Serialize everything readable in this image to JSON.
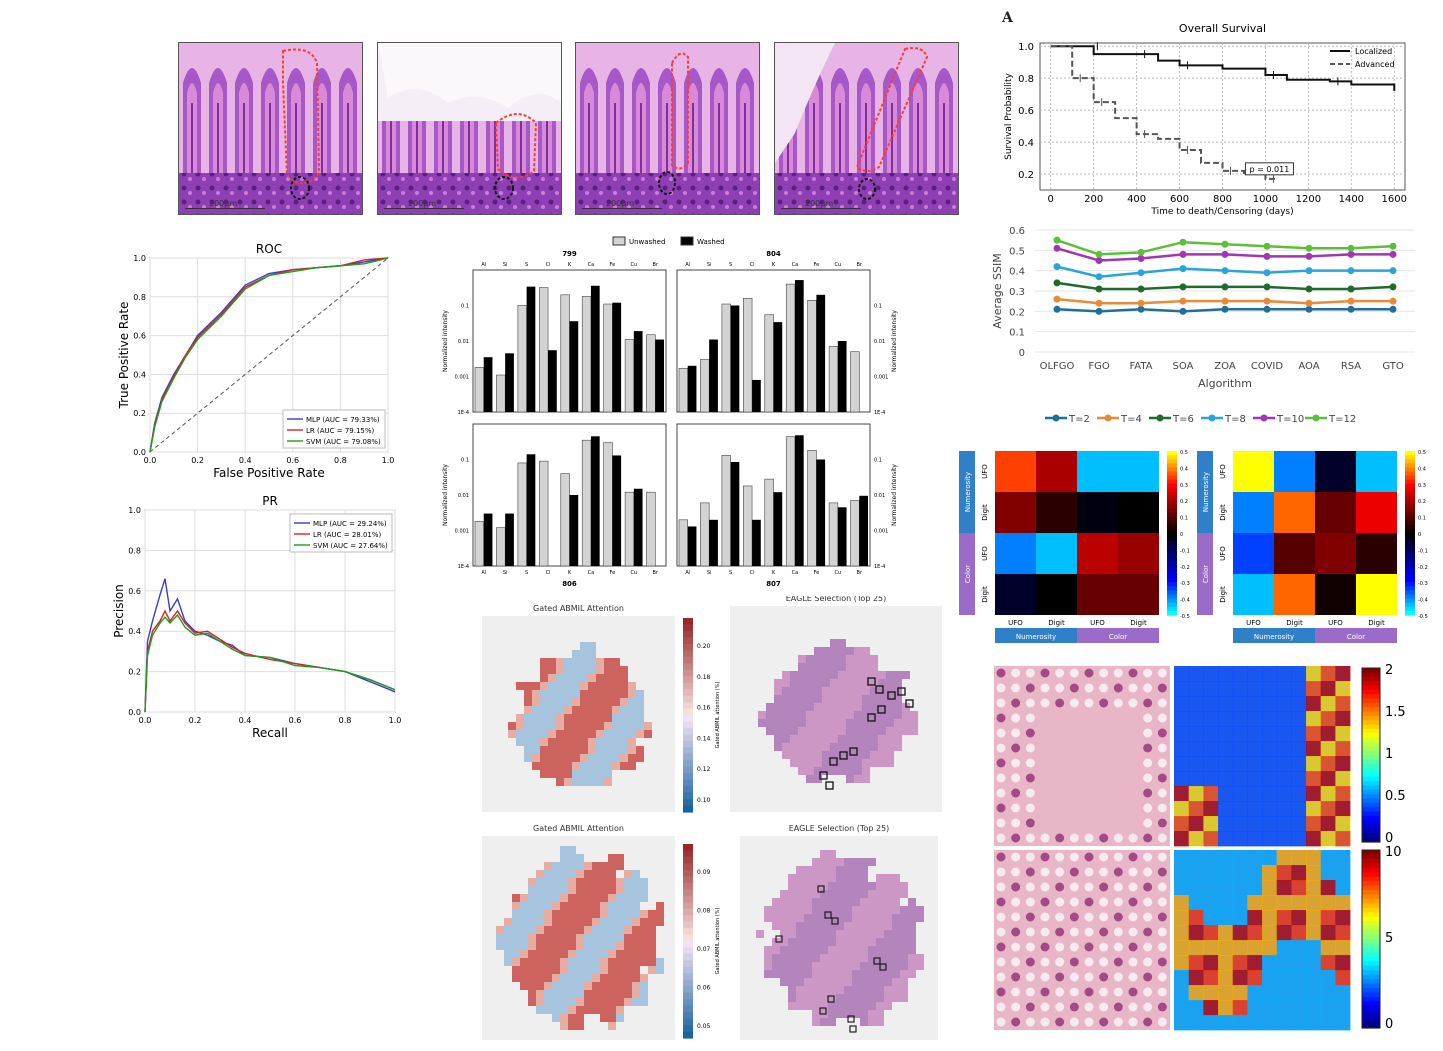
{
  "panel_label_A": "A",
  "histology_panels": [
    {
      "scale": "200μm"
    },
    {
      "scale": "200μm"
    },
    {
      "scale": "200μm"
    },
    {
      "scale": "200μm"
    }
  ],
  "colors": {
    "mlp": "#3a3ad6",
    "lr": "#d42424",
    "svm": "#1e9e1e",
    "he_purple": "#b06ad0",
    "he_pink": "#e3a2dc",
    "ssim": [
      "#1f6f9c",
      "#e98a36",
      "#1e6b2c",
      "#2aa5d9",
      "#a035b5",
      "#5cbf3a"
    ]
  },
  "chart_data": [
    {
      "id": "survival",
      "type": "line",
      "title": "Overall Survival",
      "xlabel": "Time to death/Censoring (days)",
      "ylabel": "Survival Probability",
      "xlim": [
        -50,
        1650
      ],
      "ylim": [
        0.1,
        1.02
      ],
      "xticks": [
        0,
        200,
        400,
        600,
        800,
        1000,
        1200,
        1400,
        1600
      ],
      "yticks": [
        0.2,
        0.4,
        0.6,
        0.8,
        1.0
      ],
      "grid": true,
      "legend_position": "top-right",
      "annotation": "p = 0.011",
      "series": [
        {
          "name": "Localized",
          "style": "solid",
          "x": [
            0,
            180,
            200,
            400,
            500,
            600,
            800,
            1000,
            1100,
            1300,
            1400,
            1600
          ],
          "y": [
            1.0,
            1.0,
            0.95,
            0.95,
            0.91,
            0.88,
            0.86,
            0.82,
            0.79,
            0.78,
            0.76,
            0.72
          ]
        },
        {
          "name": "Advanced",
          "style": "dashed",
          "x": [
            0,
            100,
            180,
            200,
            300,
            400,
            500,
            600,
            700,
            800,
            900,
            1000,
            1050
          ],
          "y": [
            1.0,
            0.8,
            0.8,
            0.65,
            0.55,
            0.45,
            0.42,
            0.35,
            0.27,
            0.22,
            0.2,
            0.17,
            0.17
          ]
        }
      ]
    },
    {
      "id": "ssim",
      "type": "line",
      "xlabel": "Algorithm",
      "ylabel": "Average SSIM",
      "categories": [
        "OLFGO",
        "FGO",
        "FATA",
        "SOA",
        "ZOA",
        "COVID",
        "AOA",
        "RSA",
        "GTO"
      ],
      "ylim": [
        0,
        0.6
      ],
      "yticks": [
        0,
        0.1,
        0.2,
        0.3,
        0.4,
        0.5,
        0.6
      ],
      "grid": true,
      "legend_position": "bottom",
      "series": [
        {
          "name": "T=2",
          "values": [
            0.21,
            0.2,
            0.21,
            0.2,
            0.21,
            0.21,
            0.21,
            0.21,
            0.21
          ]
        },
        {
          "name": "T=4",
          "values": [
            0.26,
            0.24,
            0.24,
            0.25,
            0.25,
            0.25,
            0.24,
            0.25,
            0.25
          ]
        },
        {
          "name": "T=6",
          "values": [
            0.34,
            0.31,
            0.31,
            0.32,
            0.32,
            0.32,
            0.31,
            0.31,
            0.32
          ]
        },
        {
          "name": "T=8",
          "values": [
            0.42,
            0.37,
            0.39,
            0.41,
            0.4,
            0.39,
            0.4,
            0.4,
            0.4
          ]
        },
        {
          "name": "T=10",
          "values": [
            0.51,
            0.45,
            0.46,
            0.48,
            0.48,
            0.47,
            0.47,
            0.48,
            0.48
          ]
        },
        {
          "name": "T=12",
          "values": [
            0.55,
            0.48,
            0.49,
            0.54,
            0.53,
            0.52,
            0.51,
            0.51,
            0.52
          ]
        }
      ]
    },
    {
      "id": "roc",
      "type": "line",
      "title": "ROC",
      "xlabel": "False Positive Rate",
      "ylabel": "True Positive Rate",
      "xlim": [
        0,
        1
      ],
      "ylim": [
        0,
        1
      ],
      "ticks": [
        "0.0",
        "0.2",
        "0.4",
        "0.6",
        "0.8",
        "1.0"
      ],
      "grid": true,
      "legend_position": "bottom-right",
      "series": [
        {
          "name": "MLP (AUC = 79.33%)",
          "x": [
            0,
            0.02,
            0.05,
            0.1,
            0.15,
            0.2,
            0.3,
            0.4,
            0.5,
            0.6,
            0.7,
            0.8,
            0.9,
            1.0
          ],
          "y": [
            0,
            0.15,
            0.28,
            0.4,
            0.5,
            0.6,
            0.72,
            0.86,
            0.92,
            0.94,
            0.95,
            0.96,
            0.98,
            1.0
          ]
        },
        {
          "name": "LR (AUC = 79.15%)",
          "x": [
            0,
            0.02,
            0.05,
            0.1,
            0.15,
            0.2,
            0.3,
            0.4,
            0.5,
            0.6,
            0.7,
            0.8,
            0.9,
            1.0
          ],
          "y": [
            0,
            0.14,
            0.27,
            0.39,
            0.5,
            0.59,
            0.71,
            0.85,
            0.91,
            0.94,
            0.95,
            0.96,
            0.99,
            1.0
          ]
        },
        {
          "name": "SVM (AUC = 79.08%)",
          "x": [
            0,
            0.02,
            0.05,
            0.1,
            0.15,
            0.2,
            0.3,
            0.4,
            0.5,
            0.6,
            0.7,
            0.8,
            0.9,
            1.0
          ],
          "y": [
            0,
            0.13,
            0.26,
            0.38,
            0.49,
            0.58,
            0.7,
            0.84,
            0.91,
            0.93,
            0.95,
            0.96,
            0.97,
            1.0
          ]
        }
      ]
    },
    {
      "id": "pr",
      "type": "line",
      "title": "PR",
      "xlabel": "Recall",
      "ylabel": "Precision",
      "xlim": [
        0,
        1
      ],
      "ylim": [
        0,
        1
      ],
      "xticks": [
        "0.0",
        "0.2",
        "0.4",
        "0.6",
        "0.8",
        "1.0"
      ],
      "yticks": [
        "0.0",
        "0.2",
        "0.4",
        "0.6",
        "0.8",
        "1.0"
      ],
      "grid": true,
      "legend_position": "top-right",
      "series": [
        {
          "name": "MLP (AUC = 29.24%)",
          "x": [
            0,
            0.01,
            0.03,
            0.06,
            0.08,
            0.1,
            0.13,
            0.16,
            0.2,
            0.25,
            0.3,
            0.35,
            0.4,
            0.5,
            0.6,
            0.7,
            0.8,
            0.9,
            1.0
          ],
          "y": [
            0,
            0.35,
            0.45,
            0.58,
            0.66,
            0.5,
            0.56,
            0.45,
            0.4,
            0.38,
            0.35,
            0.33,
            0.28,
            0.27,
            0.24,
            0.22,
            0.2,
            0.15,
            0.1
          ]
        },
        {
          "name": "LR (AUC = 28.01%)",
          "x": [
            0,
            0.01,
            0.03,
            0.06,
            0.08,
            0.1,
            0.13,
            0.16,
            0.2,
            0.25,
            0.3,
            0.35,
            0.4,
            0.5,
            0.6,
            0.7,
            0.8,
            0.9,
            1.0
          ],
          "y": [
            0,
            0.3,
            0.4,
            0.45,
            0.5,
            0.45,
            0.5,
            0.44,
            0.39,
            0.4,
            0.36,
            0.32,
            0.29,
            0.26,
            0.24,
            0.22,
            0.2,
            0.16,
            0.11
          ]
        },
        {
          "name": "SVM (AUC = 27.64%)",
          "x": [
            0,
            0.01,
            0.03,
            0.06,
            0.08,
            0.1,
            0.13,
            0.16,
            0.2,
            0.25,
            0.3,
            0.35,
            0.4,
            0.5,
            0.6,
            0.7,
            0.8,
            0.9,
            1.0
          ],
          "y": [
            0,
            0.28,
            0.38,
            0.44,
            0.47,
            0.44,
            0.48,
            0.42,
            0.38,
            0.39,
            0.35,
            0.31,
            0.28,
            0.27,
            0.23,
            0.22,
            0.2,
            0.16,
            0.11
          ]
        }
      ]
    },
    {
      "id": "xrf",
      "type": "bar",
      "legend": [
        "Unwashed",
        "Washed"
      ],
      "ylabel": "Normalized intensity",
      "categories": [
        "Al",
        "Si",
        "S",
        "Cl",
        "K",
        "Ca",
        "Fe",
        "Cu",
        "Br"
      ],
      "log_scale": true,
      "yticks": [
        "1E-4",
        "0.001",
        "0.01",
        "0.1"
      ],
      "subplots": [
        {
          "title": "799",
          "unwashed": [
            0.0018,
            0.0011,
            0.1,
            0.32,
            0.2,
            0.18,
            0.11,
            0.011,
            0.015
          ],
          "washed": [
            0.0035,
            0.0045,
            0.34,
            0.0055,
            0.036,
            0.36,
            0.12,
            0.019,
            0.011
          ]
        },
        {
          "title": "804",
          "unwashed": [
            0.0017,
            0.003,
            0.11,
            0.16,
            0.055,
            0.4,
            0.14,
            0.007,
            0.005
          ],
          "washed": [
            0.002,
            0.011,
            0.1,
            0.0008,
            0.034,
            0.52,
            0.2,
            0.01,
            0.0001
          ]
        },
        {
          "title": "806",
          "unwashed": [
            0.0018,
            0.0012,
            0.08,
            0.09,
            0.04,
            0.35,
            0.3,
            0.012,
            0.012
          ],
          "washed": [
            0.003,
            0.003,
            0.14,
            0.0001,
            0.01,
            0.45,
            0.13,
            0.015,
            0.0001
          ]
        },
        {
          "title": "807",
          "unwashed": [
            0.002,
            0.006,
            0.13,
            0.018,
            0.028,
            0.44,
            0.18,
            0.006,
            0.007
          ],
          "washed": [
            0.0013,
            0.002,
            0.085,
            0.002,
            0.012,
            0.48,
            0.1,
            0.0045,
            0.0095
          ]
        }
      ]
    },
    {
      "id": "rsm",
      "type": "heatmap",
      "row_groups": [
        "Numerosity",
        "Color"
      ],
      "row_labels": [
        "UFO",
        "Digit",
        "UFO",
        "Digit"
      ],
      "col_labels": [
        "UFO",
        "Digit",
        "UFO",
        "Digit"
      ],
      "col_groups": [
        "Numerosity",
        "Color"
      ],
      "colorbar_ticks": [
        "0.5",
        "0.4",
        "0.3",
        "0.2",
        "0.1",
        "0",
        "-0.1",
        "-0.2",
        "-0.3",
        "-0.4",
        "-0.5"
      ],
      "range": [
        -0.5,
        0.5
      ],
      "matrices": [
        [
          [
            0.35,
            0.2,
            -0.45,
            -0.45
          ],
          [
            0.15,
            0.05,
            -0.02,
            0.0
          ],
          [
            -0.4,
            -0.45,
            0.22,
            0.18
          ],
          [
            -0.05,
            0.0,
            0.12,
            0.12
          ]
        ],
        [
          [
            0.5,
            -0.4,
            -0.05,
            -0.45
          ],
          [
            -0.4,
            0.38,
            0.12,
            0.28
          ],
          [
            -0.35,
            0.1,
            0.15,
            0.05
          ],
          [
            -0.45,
            0.38,
            0.02,
            0.5
          ]
        ]
      ]
    },
    {
      "id": "abmil",
      "type": "heatmap",
      "titles": [
        "Gated ABMIL Attention",
        "EAGLE Selection (Top 25)",
        "Gated ABMIL Attention",
        "EAGLE Selection (Top 25)"
      ],
      "colorbar_label": "Gated ABMIL attention (%)",
      "colorbar_ticks_top": [
        "0.20",
        "0.18",
        "0.16",
        "0.14",
        "0.12",
        "0.10"
      ],
      "colorbar_ticks_bottom": [
        "0.09",
        "0.08",
        "0.07",
        "0.06",
        "0.05"
      ]
    },
    {
      "id": "gradcam",
      "type": "heatmap",
      "colorbar_top": [
        "2",
        "1.5",
        "1",
        "0.5",
        "0"
      ],
      "colorbar_bottom": [
        "10",
        "5",
        "0"
      ]
    }
  ]
}
